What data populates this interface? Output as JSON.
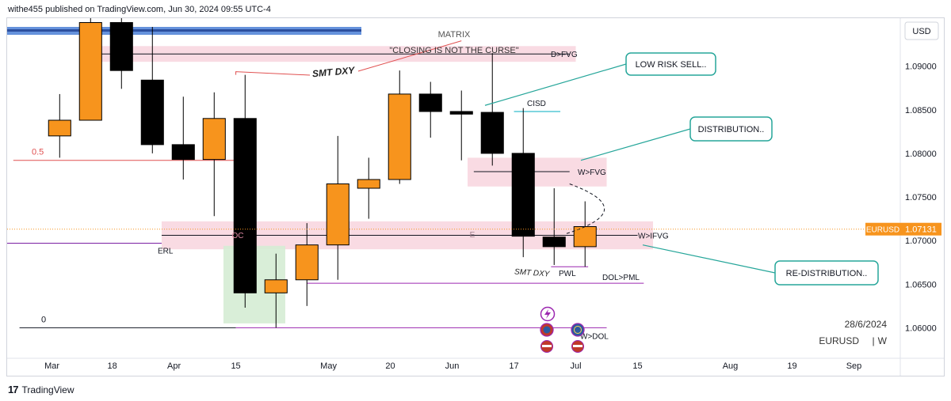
{
  "header": {
    "publisher_line": "withe455 published on TradingView.com, Jun 30, 2024 09:55 UTC-4"
  },
  "footer": {
    "brand": "TradingView"
  },
  "chart_data": {
    "type": "candlestick",
    "symbol": "EURUSD",
    "interval": "W",
    "currency": "USD",
    "date_stamp": "28/6/2024",
    "last_price_label": "EURUSD",
    "last_price": "1.07131",
    "last_price_value": 1.07131,
    "ylim": [
      1.0565,
      1.0955
    ],
    "yticks": [
      {
        "value": 1.09,
        "label": "1.09000"
      },
      {
        "value": 1.085,
        "label": "1.08500"
      },
      {
        "value": 1.08,
        "label": "1.08000"
      },
      {
        "value": 1.075,
        "label": "1.07500"
      },
      {
        "value": 1.07,
        "label": "1.07000"
      },
      {
        "value": 1.065,
        "label": "1.06500"
      },
      {
        "value": 1.06,
        "label": "1.06000"
      }
    ],
    "xlim": [
      -1.7,
      27.2
    ],
    "xticks": [
      {
        "x": -0.25,
        "label": "Mar"
      },
      {
        "x": 1.7,
        "label": "18"
      },
      {
        "x": 3.7,
        "label": "Apr"
      },
      {
        "x": 5.7,
        "label": "15"
      },
      {
        "x": 8.7,
        "label": "May"
      },
      {
        "x": 10.7,
        "label": "20"
      },
      {
        "x": 12.7,
        "label": "Jun"
      },
      {
        "x": 14.7,
        "label": "17"
      },
      {
        "x": 16.7,
        "label": "Jul"
      },
      {
        "x": 18.7,
        "label": "15"
      },
      {
        "x": 21.7,
        "label": "Aug"
      },
      {
        "x": 23.7,
        "label": "19"
      },
      {
        "x": 25.7,
        "label": "Sep"
      }
    ],
    "candles": [
      {
        "date": "2024-02-12",
        "open": 1.082,
        "high": 1.0868,
        "low": 1.0795,
        "close": 1.0838
      },
      {
        "date": "2024-02-19",
        "open": 1.0838,
        "high": 1.0975,
        "low": 1.0838,
        "close": 1.095
      },
      {
        "date": "2024-02-26",
        "open": 1.095,
        "high": 1.0975,
        "low": 1.0874,
        "close": 1.0895
      },
      {
        "date": "2024-03-04",
        "open": 1.0884,
        "high": 1.0945,
        "low": 1.08,
        "close": 1.081
      },
      {
        "date": "2024-03-11",
        "open": 1.081,
        "high": 1.0865,
        "low": 1.077,
        "close": 1.0793
      },
      {
        "date": "2024-03-18",
        "open": 1.0793,
        "high": 1.087,
        "low": 1.0728,
        "close": 1.084
      },
      {
        "date": "2024-03-25",
        "open": 1.084,
        "high": 1.089,
        "low": 1.0623,
        "close": 1.064
      },
      {
        "date": "2024-04-01",
        "open": 1.064,
        "high": 1.0685,
        "low": 1.06,
        "close": 1.0655
      },
      {
        "date": "2024-04-08",
        "open": 1.0655,
        "high": 1.072,
        "low": 1.0625,
        "close": 1.0695
      },
      {
        "date": "2024-04-15",
        "open": 1.0695,
        "high": 1.082,
        "low": 1.0655,
        "close": 1.0765
      },
      {
        "date": "2024-04-22",
        "open": 1.076,
        "high": 1.0795,
        "low": 1.0725,
        "close": 1.077
      },
      {
        "date": "2024-04-29",
        "open": 1.077,
        "high": 1.0895,
        "low": 1.0765,
        "close": 1.0868
      },
      {
        "date": "2024-05-06",
        "open": 1.0868,
        "high": 1.0882,
        "low": 1.0818,
        "close": 1.0848
      },
      {
        "date": "2024-05-13",
        "open": 1.0848,
        "high": 1.0872,
        "low": 1.0792,
        "close": 1.0845
      },
      {
        "date": "2024-05-20",
        "open": 1.0847,
        "high": 1.0915,
        "low": 1.0786,
        "close": 1.08
      },
      {
        "date": "2024-05-27",
        "open": 1.08,
        "high": 1.0852,
        "low": 1.0681,
        "close": 1.0705
      },
      {
        "date": "2024-06-03",
        "open": 1.0704,
        "high": 1.076,
        "low": 1.0672,
        "close": 1.0693
      },
      {
        "date": "2024-06-10",
        "open": 1.0693,
        "high": 1.0745,
        "low": 1.067,
        "close": 1.0716
      }
    ],
    "zones": [
      {
        "name": "D>FVG",
        "x0": 1.0,
        "x1": 16.7,
        "y0": 1.0923,
        "y1": 1.0905,
        "label": "D>FVG"
      },
      {
        "name": "W>FVG",
        "x0": 13.2,
        "x1": 17.7,
        "y0": 1.0795,
        "y1": 1.0762,
        "label": "W>FVG"
      },
      {
        "name": "W>IFVG",
        "x0": 3.3,
        "x1": 19.2,
        "y0": 1.0722,
        "y1": 1.069,
        "label": "W>IFVG"
      },
      {
        "name": "green",
        "x0": 5.3,
        "x1": 7.3,
        "y0": 1.0694,
        "y1": 1.0605,
        "label": ""
      }
    ],
    "hlines": [
      {
        "name": "0.5",
        "x0": -1.5,
        "x1": 5.7,
        "y": 1.0792,
        "color": "#e05050",
        "label": "0.5"
      },
      {
        "name": "ERL",
        "x0": -1.7,
        "x1": 3.3,
        "y": 1.0697,
        "color": "#7b1fa2",
        "label": "ERL"
      },
      {
        "name": "zero",
        "x0": -1.3,
        "x1": 5.7,
        "y": 1.06,
        "color": "#131722",
        "label": "0"
      },
      {
        "name": "w-dol",
        "x0": 5.7,
        "x1": 17.7,
        "y": 1.06,
        "color": "#9c27b0",
        "label": "W>DOL"
      },
      {
        "name": "dol-pml",
        "x0": 8.0,
        "x1": 18.9,
        "y": 1.0651,
        "color": "#9c27b0",
        "label": "DOL>PML"
      },
      {
        "name": "pwl",
        "x0": 15.9,
        "x1": 17.1,
        "y": 1.067,
        "color": "#9c27b0",
        "label": "PWL"
      },
      {
        "name": "cisd",
        "x0": 14.7,
        "x1": 16.2,
        "y": 1.0848,
        "color": "#00acc1",
        "label": "CISD"
      },
      {
        "name": "d-fvg-line",
        "x0": 1.0,
        "x1": 16.5,
        "y": 1.0914,
        "color": "#131722",
        "label": ""
      },
      {
        "name": "w-fvg-line",
        "x0": 13.4,
        "x1": 16.5,
        "y": 1.0779,
        "color": "#131722",
        "label": ""
      },
      {
        "name": "w-ifvg-line",
        "x0": 3.3,
        "x1": 18.7,
        "y": 1.0706,
        "color": "#131722",
        "label": ""
      }
    ],
    "texts": {
      "matrix": "MATRIX",
      "quote": "\"CLOSING IS NOT THE CURSE\"",
      "smt_dxy": "SMT DXY",
      "smt_dxy_small": "SMT DXY",
      "oc": "OC",
      "e_mark": "E"
    },
    "callouts": [
      {
        "name": "low-risk-sell",
        "text": "LOW RISK SELL.."
      },
      {
        "name": "distribution",
        "text": "DISTRIBUTION.."
      },
      {
        "name": "re-distribution",
        "text": "RE-DISTRIBUTION.."
      }
    ],
    "colors": {
      "bull": "#f7941d",
      "bear": "#000000",
      "zone_pink": "#f8d7e0",
      "zone_green": "#d5ecd4",
      "callout_border": "#26a69a",
      "top_band": "#4a7fd6"
    }
  }
}
